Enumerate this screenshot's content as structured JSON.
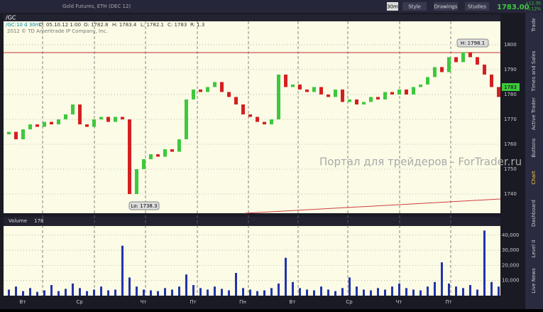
{
  "toolbar": {
    "buttons": [
      "30m",
      "Style",
      "Drawings",
      "Studies"
    ],
    "last": "1783.00",
    "change": "+12.30",
    "change_pct": "+0.12%"
  },
  "header": {
    "symbol": "/GC",
    "study": "/GC:10 d 30m",
    "date": "D: 05.10.12 1:00",
    "open": "O: 1782.8",
    "high": "H: 1783.4",
    "low": "L: 1782.1",
    "close": "C: 1783",
    "range": "R: 1.3",
    "name": "Gold Futures, ETH (DEC 12)",
    "copyright": "2012 © TD Ameritrade IP Company, Inc."
  },
  "annotations": {
    "high": "H: 1798.1",
    "low": "Lo: 1738.3",
    "price_tag": "1783"
  },
  "watermark": "Портал для трейдеров - ForTrader.ru",
  "volume_header": {
    "title": "Volume",
    "value": "178"
  },
  "tabs": [
    "Trade",
    "Times and Sales",
    "Active Trader",
    "Buttons",
    "Chart",
    "Dashboard",
    "Level II",
    "Live News"
  ],
  "chart_data": {
    "type": "candlestick",
    "categories": [
      null,
      null,
      "Вт",
      null,
      null,
      null,
      null,
      null,
      null,
      null,
      "Ср",
      null,
      null,
      null,
      null,
      null,
      null,
      null,
      null,
      "Чт",
      null,
      null,
      null,
      null,
      null,
      null,
      "Пт",
      null,
      null,
      null,
      null,
      null,
      null,
      "Пн",
      null,
      null,
      null,
      null,
      null,
      null,
      "Вт",
      null,
      null,
      null,
      null,
      null,
      null,
      null,
      "Ср",
      null,
      null,
      null,
      null,
      null,
      null,
      "Чт",
      null,
      null,
      null,
      null,
      null,
      null,
      "Пт",
      null,
      null,
      null,
      null,
      null,
      null,
      null
    ],
    "open": [
      1764,
      1765,
      1762,
      1766,
      1768,
      1767,
      1769,
      1768,
      1770,
      1772,
      1776,
      1768,
      1767,
      1770,
      1771,
      1769,
      1771,
      1770,
      1740,
      1750,
      1754,
      1756,
      1755,
      1758,
      1757,
      1762,
      1778,
      1782,
      1781,
      1783,
      1785,
      1781,
      1779,
      1776,
      1772,
      1771,
      1769,
      1768,
      1770,
      1788,
      1783,
      1784,
      1782,
      1781,
      1783,
      1780,
      1779,
      1782,
      1777,
      1778,
      1776,
      1777,
      1779,
      1778,
      1781,
      1780,
      1782,
      1780,
      1783,
      1784,
      1787,
      1791,
      1789,
      1795,
      1793,
      1797,
      1795,
      1792,
      1788,
      1783
    ],
    "close": [
      1765,
      1762,
      1766,
      1768,
      1767,
      1769,
      1768,
      1770,
      1772,
      1776,
      1768,
      1767,
      1770,
      1771,
      1769,
      1771,
      1770,
      1740,
      1750,
      1754,
      1756,
      1755,
      1758,
      1757,
      1762,
      1778,
      1782,
      1781,
      1783,
      1785,
      1781,
      1779,
      1776,
      1772,
      1771,
      1769,
      1768,
      1770,
      1788,
      1783,
      1784,
      1782,
      1781,
      1783,
      1780,
      1779,
      1782,
      1777,
      1778,
      1776,
      1777,
      1779,
      1778,
      1781,
      1780,
      1782,
      1780,
      1783,
      1784,
      1787,
      1791,
      1789,
      1795,
      1793,
      1797,
      1795,
      1792,
      1788,
      1783,
      1779
    ],
    "up_color": "#3ec83e",
    "down_color": "#d42020",
    "ylim": [
      1732.3,
      1809.4
    ],
    "yticks": [
      1740,
      1750,
      1760,
      1770,
      1780,
      1790,
      1800
    ],
    "volume": {
      "color": "#2233aa",
      "values": [
        4000,
        6000,
        3000,
        5000,
        2500,
        3500,
        7000,
        3000,
        4500,
        8000,
        5000,
        3000,
        4000,
        6000,
        3500,
        4000,
        33000,
        12000,
        6000,
        4000,
        3500,
        3000,
        5000,
        4000,
        6000,
        14000,
        7000,
        5000,
        4000,
        6000,
        4500,
        3500,
        15000,
        5000,
        4000,
        3000,
        3500,
        5000,
        8000,
        25000,
        9000,
        5000,
        4000,
        3500,
        6000,
        4000,
        3000,
        5000,
        12000,
        6000,
        4000,
        3500,
        5000,
        4000,
        6000,
        8000,
        5000,
        4000,
        3500,
        6000,
        9000,
        22000,
        8000,
        6000,
        5000,
        7000,
        4000,
        43000,
        9000,
        6000
      ],
      "ylim": [
        0,
        46000
      ],
      "yticks": [
        {
          "value": 10000,
          "label": "10,000"
        },
        {
          "value": 20000,
          "label": "20,000"
        },
        {
          "value": 30000,
          "label": "30,000"
        },
        {
          "value": 40000,
          "label": "40,000"
        }
      ]
    }
  }
}
